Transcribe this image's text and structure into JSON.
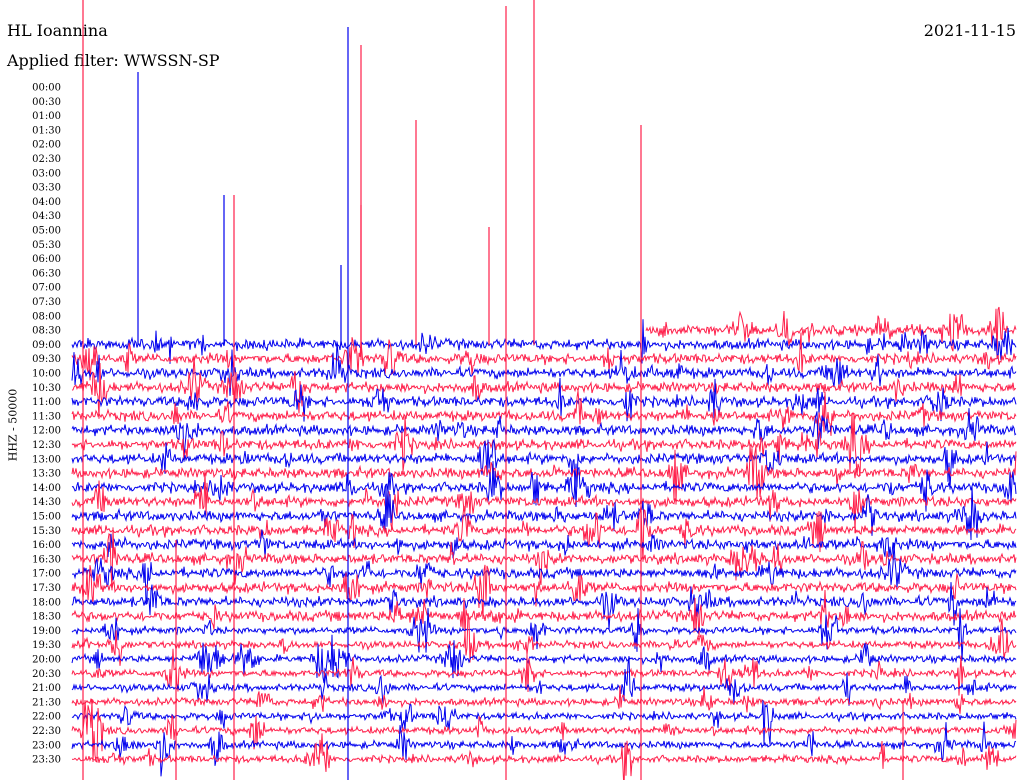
{
  "header": {
    "station": "HL Ioannina",
    "date": "2021-11-15",
    "filter": "Applied filter: WWSSN-SP"
  },
  "chart_data": {
    "type": "line",
    "title": "HL Ioannina",
    "ylabel": "HHZ - 50000",
    "colors": [
      "#0000ee",
      "#ff1f4a"
    ],
    "row_labels": [
      "00:00",
      "00:30",
      "01:00",
      "01:30",
      "02:00",
      "02:30",
      "03:00",
      "03:30",
      "04:00",
      "04:30",
      "05:00",
      "05:30",
      "06:00",
      "06:30",
      "07:00",
      "07:30",
      "08:00",
      "08:30",
      "09:00",
      "09:30",
      "10:00",
      "10:30",
      "11:00",
      "11:30",
      "12:00",
      "12:30",
      "13:00",
      "13:30",
      "14:00",
      "14:30",
      "15:00",
      "15:30",
      "16:00",
      "16:30",
      "17:00",
      "17:30",
      "18:00",
      "18:30",
      "19:00",
      "19:30",
      "20:00",
      "20:30",
      "21:00",
      "21:30",
      "22:00",
      "22:30",
      "23:00",
      "23:30"
    ],
    "data_start_row": "08:30",
    "grid": false,
    "legend": "none"
  }
}
